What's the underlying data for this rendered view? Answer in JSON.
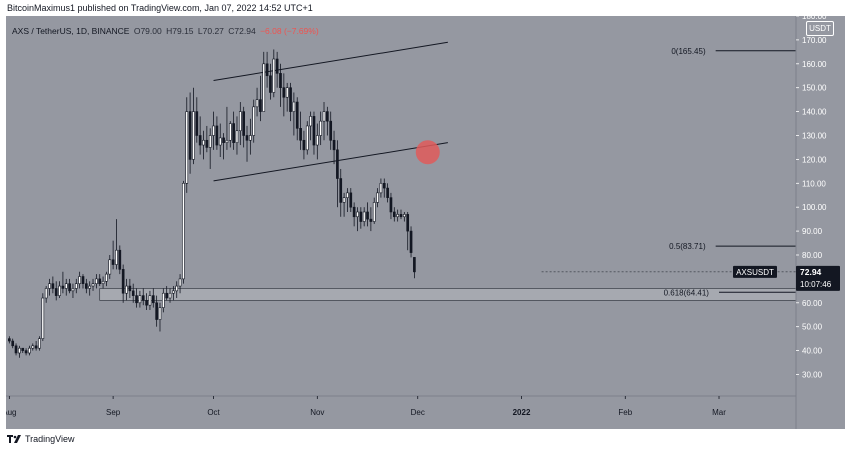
{
  "header": {
    "published_by": "BitcoinMaximus1 published on TradingView.com, Jan 07, 2022 14:52 UTC+1"
  },
  "legend": {
    "symbol": "AXS / TetherUS, 1D, BINANCE",
    "open": "O79.00",
    "high": "H79.15",
    "low": "L70.27",
    "close": "C72.94",
    "change": "−6.08 (−7.69%)"
  },
  "footer": {
    "brand": "TradingView"
  },
  "price_tag": {
    "symbol": "AXSUSDT",
    "price": "72.94",
    "countdown": "10:07:46"
  },
  "currency_badge": "USDT",
  "colors": {
    "background": "#9598a1",
    "up_candle": "#ffffff",
    "down_candle": "#131722",
    "support_zone": "#a9acb3",
    "breakdown_marker": "#e05a5a",
    "text": "#131722"
  },
  "chart_data": {
    "type": "candlestick",
    "title": "",
    "xlabel": "",
    "ylabel": "",
    "ylim": [
      21,
      180
    ],
    "y_ticks": [
      "30.00",
      "40.00",
      "50.00",
      "60.00",
      "70.00",
      "80.00",
      "90.00",
      "100.00",
      "110.00",
      "120.00",
      "130.00",
      "140.00",
      "150.00",
      "160.00",
      "170.00",
      "180.00"
    ],
    "x_ticks": [
      "Aug",
      "Sep",
      "Oct",
      "Nov",
      "Dec",
      "2022",
      "Feb",
      "Mar"
    ],
    "x_tick_dates": [
      "2021-08-01",
      "2021-09-01",
      "2021-10-01",
      "2021-11-01",
      "2021-12-01",
      "2022-01-01",
      "2022-02-01",
      "2022-03-01"
    ],
    "x_range": [
      "2021-07-31",
      "2022-03-24"
    ],
    "grid": false,
    "candles_ohlc": [
      [
        45,
        46,
        43,
        44
      ],
      [
        44,
        45,
        41,
        42
      ],
      [
        42,
        43,
        38,
        39
      ],
      [
        39,
        42,
        37,
        41
      ],
      [
        41,
        41,
        39,
        40
      ],
      [
        40,
        41,
        38,
        39
      ],
      [
        39,
        42,
        38,
        41
      ],
      [
        41,
        43,
        40,
        42
      ],
      [
        42,
        44,
        40,
        41
      ],
      [
        41,
        46,
        40,
        45
      ],
      [
        45,
        64,
        44,
        62
      ],
      [
        62,
        67,
        60,
        66
      ],
      [
        66,
        70,
        63,
        68
      ],
      [
        68,
        71,
        64,
        66
      ],
      [
        66,
        69,
        61,
        63
      ],
      [
        63,
        69,
        62,
        67
      ],
      [
        67,
        73,
        64,
        66
      ],
      [
        66,
        70,
        63,
        68
      ],
      [
        68,
        70,
        64,
        65
      ],
      [
        65,
        68,
        62,
        66
      ],
      [
        66,
        70,
        64,
        68
      ],
      [
        68,
        73,
        66,
        71
      ],
      [
        71,
        72,
        66,
        68
      ],
      [
        68,
        70,
        64,
        66
      ],
      [
        66,
        69,
        63,
        67
      ],
      [
        67,
        70,
        65,
        68
      ],
      [
        68,
        72,
        66,
        70
      ],
      [
        70,
        72,
        67,
        68
      ],
      [
        68,
        71,
        66,
        69
      ],
      [
        69,
        73,
        67,
        72
      ],
      [
        72,
        80,
        70,
        78
      ],
      [
        78,
        86,
        74,
        76
      ],
      [
        76,
        95,
        74,
        82
      ],
      [
        82,
        84,
        72,
        74
      ],
      [
        74,
        76,
        60,
        64
      ],
      [
        64,
        70,
        61,
        67
      ],
      [
        67,
        70,
        62,
        65
      ],
      [
        65,
        68,
        60,
        63
      ],
      [
        63,
        66,
        58,
        60
      ],
      [
        60,
        65,
        58,
        63
      ],
      [
        63,
        66,
        59,
        61
      ],
      [
        61,
        64,
        57,
        59
      ],
      [
        59,
        65,
        57,
        63
      ],
      [
        63,
        66,
        58,
        60
      ],
      [
        60,
        63,
        50,
        53
      ],
      [
        53,
        60,
        48,
        58
      ],
      [
        58,
        66,
        56,
        64
      ],
      [
        64,
        67,
        61,
        62
      ],
      [
        62,
        66,
        60,
        64
      ],
      [
        64,
        67,
        61,
        65
      ],
      [
        65,
        69,
        62,
        67
      ],
      [
        67,
        72,
        64,
        70
      ],
      [
        70,
        111,
        68,
        110
      ],
      [
        110,
        146,
        106,
        140
      ],
      [
        140,
        148,
        114,
        120
      ],
      [
        120,
        150,
        118,
        140
      ],
      [
        140,
        146,
        127,
        130
      ],
      [
        130,
        138,
        122,
        126
      ],
      [
        126,
        132,
        120,
        128
      ],
      [
        128,
        134,
        123,
        125
      ],
      [
        125,
        133,
        116,
        130
      ],
      [
        130,
        140,
        124,
        134
      ],
      [
        134,
        138,
        124,
        126
      ],
      [
        126,
        135,
        121,
        129
      ],
      [
        129,
        131,
        120,
        127
      ],
      [
        127,
        142,
        124,
        128
      ],
      [
        128,
        136,
        125,
        135
      ],
      [
        135,
        140,
        124,
        127
      ],
      [
        127,
        138,
        122,
        132
      ],
      [
        132,
        144,
        126,
        140
      ],
      [
        140,
        142,
        125,
        130
      ],
      [
        130,
        134,
        119,
        128
      ],
      [
        128,
        137,
        122,
        130
      ],
      [
        130,
        145,
        127,
        142
      ],
      [
        142,
        150,
        138,
        145
      ],
      [
        145,
        155,
        136,
        140
      ],
      [
        140,
        165,
        140,
        160
      ],
      [
        160,
        165,
        150,
        155
      ],
      [
        155,
        160,
        145,
        148
      ],
      [
        148,
        166,
        146,
        162
      ],
      [
        162,
        165,
        150,
        156
      ],
      [
        156,
        160,
        142,
        150
      ],
      [
        150,
        156,
        138,
        146
      ],
      [
        146,
        152,
        140,
        150
      ],
      [
        150,
        152,
        136,
        140
      ],
      [
        140,
        148,
        130,
        144
      ],
      [
        144,
        146,
        128,
        133
      ],
      [
        133,
        140,
        124,
        128
      ],
      [
        128,
        132,
        120,
        124
      ],
      [
        124,
        136,
        122,
        134
      ],
      [
        134,
        140,
        128,
        138
      ],
      [
        138,
        140,
        122,
        126
      ],
      [
        126,
        135,
        120,
        130
      ],
      [
        130,
        140,
        126,
        136
      ],
      [
        136,
        144,
        128,
        140
      ],
      [
        140,
        142,
        130,
        136
      ],
      [
        136,
        140,
        124,
        128
      ],
      [
        128,
        132,
        118,
        124
      ],
      [
        124,
        128,
        100,
        112
      ],
      [
        112,
        116,
        96,
        102
      ],
      [
        102,
        106,
        96,
        104
      ],
      [
        104,
        108,
        98,
        106
      ],
      [
        106,
        108,
        98,
        100
      ],
      [
        100,
        102,
        92,
        96
      ],
      [
        96,
        100,
        90,
        98
      ],
      [
        98,
        100,
        91,
        94
      ],
      [
        94,
        100,
        92,
        98
      ],
      [
        98,
        102,
        92,
        95
      ],
      [
        95,
        100,
        90,
        94
      ],
      [
        94,
        104,
        93,
        102
      ],
      [
        102,
        108,
        100,
        106
      ],
      [
        106,
        112,
        104,
        110
      ],
      [
        110,
        112,
        104,
        108
      ],
      [
        108,
        110,
        102,
        104
      ],
      [
        104,
        106,
        95,
        98
      ],
      [
        98,
        100,
        94,
        96
      ],
      [
        96,
        99,
        94,
        97
      ],
      [
        97,
        99,
        95,
        96
      ],
      [
        96,
        98,
        94,
        97
      ],
      [
        97,
        98,
        82,
        90
      ],
      [
        90,
        92,
        79,
        81
      ],
      [
        79,
        79.15,
        70.27,
        72.94
      ]
    ],
    "channel_upper": {
      "start": [
        "2021-10-01",
        153
      ],
      "end": [
        "2021-12-10",
        169
      ]
    },
    "channel_lower": {
      "start": [
        "2021-10-01",
        111
      ],
      "end": [
        "2021-12-10",
        127
      ]
    },
    "breakdown_marker": {
      "x": "2021-12-04",
      "y": 123
    },
    "support_zone": {
      "x_start": "2021-08-28",
      "x_end": "2022-03-24",
      "y_low": 61,
      "y_high": 66
    },
    "fib_levels": [
      {
        "label": "0(165.45)",
        "value": 165.45
      },
      {
        "label": "0.5(83.71)",
        "value": 83.71
      },
      {
        "label": "0.618(64.41)",
        "value": 64.41
      }
    ],
    "last_price": 72.94
  }
}
